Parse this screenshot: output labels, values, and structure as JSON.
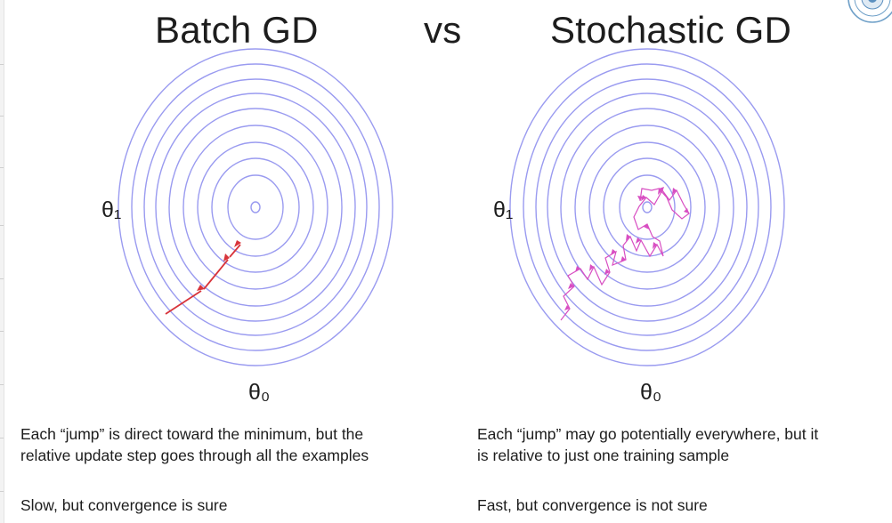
{
  "title": {
    "left": "Batch GD",
    "separator": "vs",
    "right": "Stochastic GD"
  },
  "left_panel": {
    "y_axis_label": "θ₁",
    "x_axis_label": "θ₀",
    "caption_lines": [
      "Each “jump” is direct toward the minimum, but the",
      "relative update step goes through all the examples"
    ],
    "note": "Slow, but convergence is sure"
  },
  "right_panel": {
    "y_axis_label": "θ₁",
    "x_axis_label": "θ₀",
    "caption_lines": [
      "Each “jump” may go potentially everywhere, but it",
      "is relative to just one training sample"
    ],
    "note": "Fast, but convergence is not sure"
  },
  "colors": {
    "contour": "#9a9bf0",
    "batch_path": "#d8343b",
    "stochastic_path": "#d84ec2",
    "text": "#1d1d1d"
  },
  "logo_icon": "university-seal-icon"
}
